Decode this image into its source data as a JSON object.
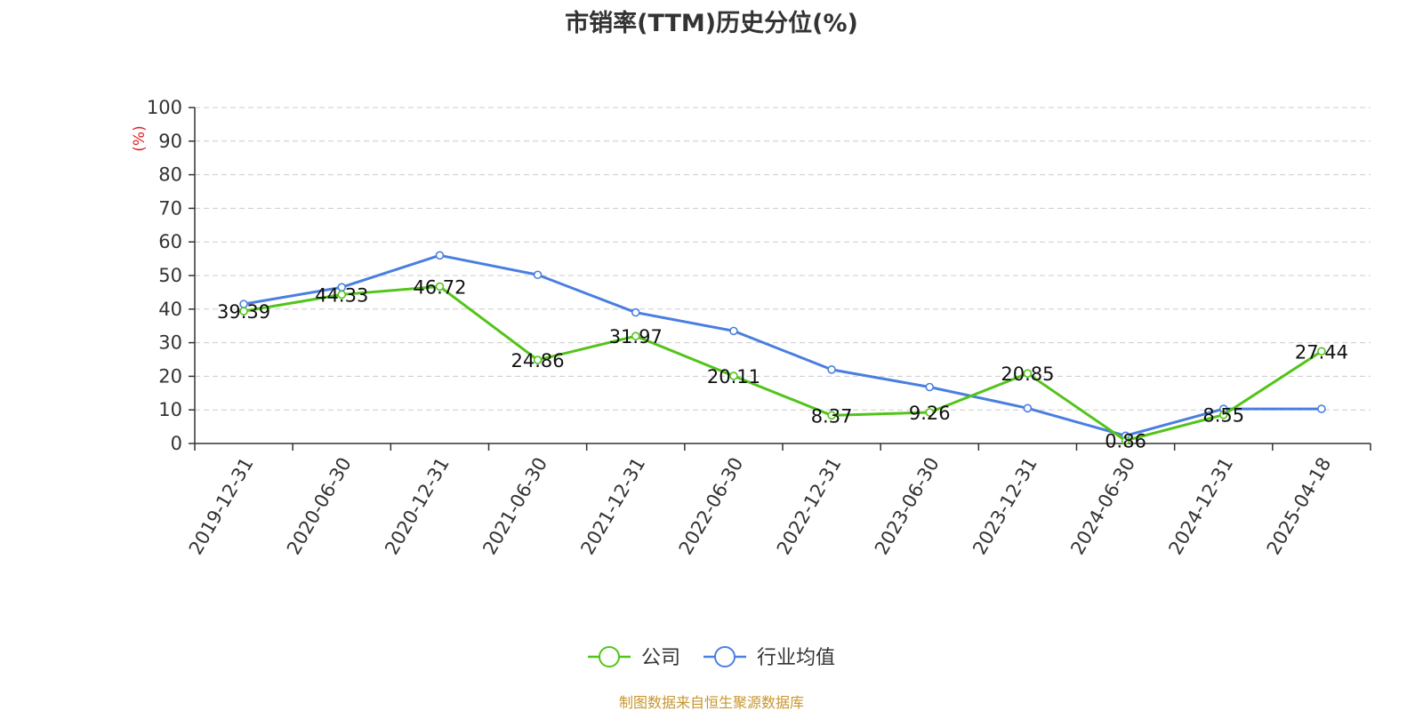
{
  "chart_data": {
    "type": "line",
    "title": "市销率(TTM)历史分位(%)",
    "ylabel": "(%)",
    "xlabel": "",
    "ylim": [
      0,
      100
    ],
    "yticks": [
      "0",
      "10",
      "20",
      "30",
      "40",
      "50",
      "60",
      "70",
      "80",
      "90",
      "100"
    ],
    "grid": true,
    "legend_position": "bottom",
    "categories": [
      "2019-12-31",
      "2020-06-30",
      "2020-12-31",
      "2021-06-30",
      "2021-12-31",
      "2022-06-30",
      "2022-12-31",
      "2023-06-30",
      "2023-12-31",
      "2024-06-30",
      "2024-12-31",
      "2025-04-18"
    ],
    "series": [
      {
        "name": "公司",
        "color": "#52c41a",
        "values": [
          39.39,
          44.33,
          46.72,
          24.86,
          31.97,
          20.11,
          8.37,
          9.26,
          20.85,
          0.86,
          8.55,
          27.44
        ],
        "labels": [
          "39.39",
          "44.33",
          "46.72",
          "24.86",
          "31.97",
          "20.11",
          "8.37",
          "9.26",
          "20.85",
          "0.86",
          "8.55",
          "27.44"
        ]
      },
      {
        "name": "行业均值",
        "color": "#4a7fe0",
        "values": [
          41.5,
          46.5,
          56.0,
          50.2,
          39.0,
          33.5,
          22.0,
          16.8,
          10.5,
          2.3,
          10.3,
          10.3
        ]
      }
    ]
  },
  "source": "制图数据来自恒生聚源数据库",
  "colors": {
    "axis": "#333333",
    "grid": "#cccccc",
    "ylabel": "#e02020",
    "source": "#c8962e"
  }
}
